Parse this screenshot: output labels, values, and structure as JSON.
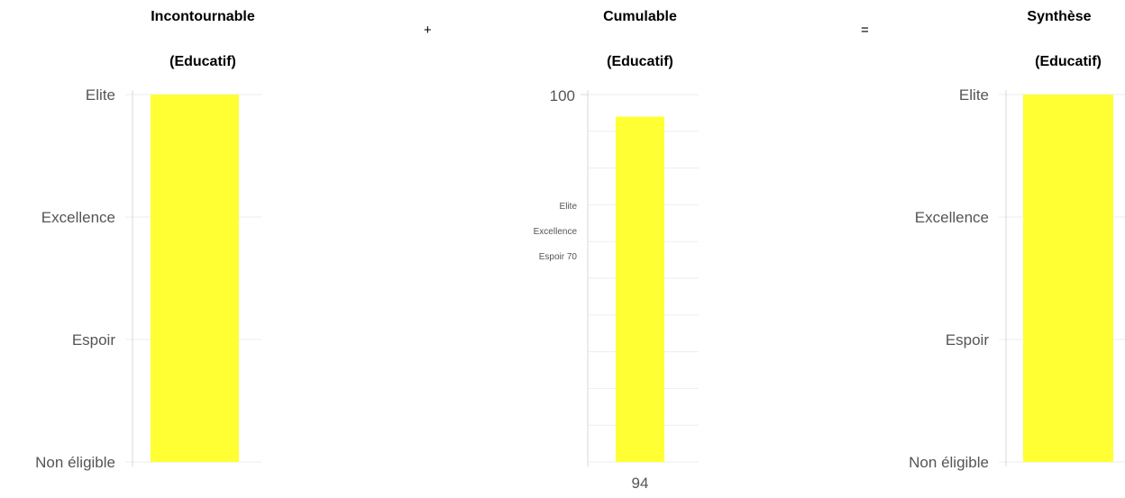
{
  "panels": [
    {
      "title": "Incontournable",
      "subtitle": "(Educatif)"
    },
    {
      "title": "Cumulable",
      "subtitle": "(Educatif)"
    },
    {
      "title": "Synthèse",
      "subtitle": "(Educatif)"
    }
  ],
  "operators": {
    "plus": "+",
    "equals": "="
  },
  "colors": {
    "bar": "#ffff33",
    "grid": "#eeeeee",
    "axis": "#d8d8d8",
    "label": "#555555"
  },
  "chart_data": [
    {
      "type": "bar",
      "title": "Incontournable (Educatif)",
      "categories": [
        ""
      ],
      "values": [
        "Elite"
      ],
      "y_levels": [
        "Non éligible",
        "Espoir",
        "Excellence",
        "Elite"
      ],
      "grid": true
    },
    {
      "type": "bar",
      "title": "Cumulable (Educatif)",
      "categories": [
        "94"
      ],
      "values": [
        94
      ],
      "ylim": [
        0,
        100
      ],
      "y_tick_labels": [
        "100"
      ],
      "annotations": [
        "Elite",
        "Excellence",
        "Espoir 70"
      ],
      "grid": true
    },
    {
      "type": "bar",
      "title": "Synthèse (Educatif)",
      "categories": [
        ""
      ],
      "values": [
        "Elite"
      ],
      "y_levels": [
        "Non éligible",
        "Espoir",
        "Excellence",
        "Elite"
      ],
      "grid": true
    }
  ]
}
